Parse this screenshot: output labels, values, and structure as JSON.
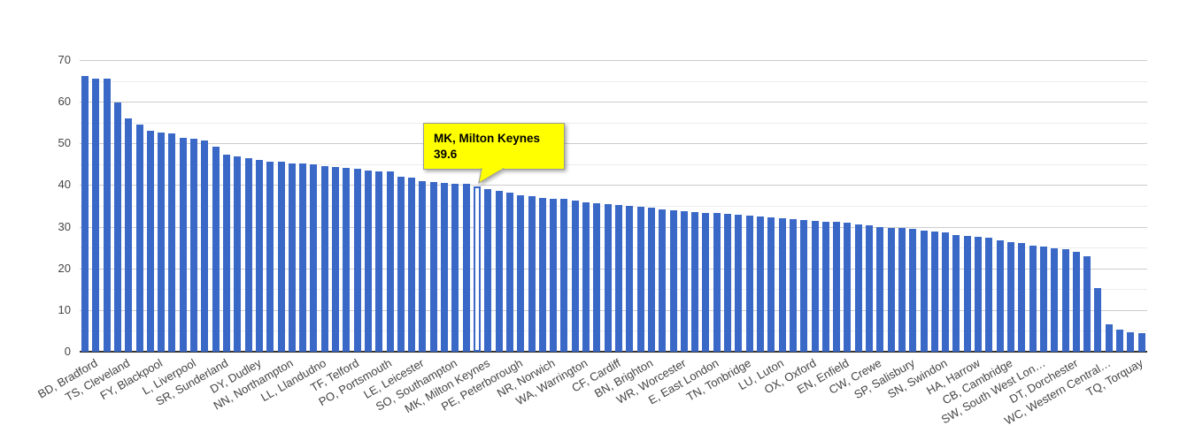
{
  "chart_data": {
    "type": "bar",
    "title": "",
    "xlabel": "",
    "ylabel": "",
    "ylim": [
      0,
      70
    ],
    "y_ticks": [
      0,
      10,
      20,
      30,
      40,
      50,
      60,
      70
    ],
    "grid": "on",
    "legend": "none",
    "tooltip": {
      "title": "MK, Milton Keynes",
      "value": "39.6"
    },
    "colors": {
      "bar": "#3a68c7",
      "highlight_fill": "#ffffff",
      "gridline_major": "#cccccc",
      "gridline_minor": "#ececec",
      "baseline": "#333333",
      "axis_text": "#444444",
      "tooltip_bg": "#ffff00",
      "tooltip_border": "#999999",
      "tooltip_text": "#000000"
    },
    "bars": [
      {
        "label": "BD, Bradford",
        "value": 66.2
      },
      {
        "label": "",
        "value": 65.6
      },
      {
        "label": "",
        "value": 65.5
      },
      {
        "label": "TS, Cleveland",
        "value": 59.8
      },
      {
        "label": "",
        "value": 56.0
      },
      {
        "label": "",
        "value": 54.6
      },
      {
        "label": "FY, Blackpool",
        "value": 53.0
      },
      {
        "label": "",
        "value": 52.5
      },
      {
        "label": "",
        "value": 52.3
      },
      {
        "label": "L, Liverpool",
        "value": 51.4
      },
      {
        "label": "",
        "value": 51.2
      },
      {
        "label": "",
        "value": 50.8
      },
      {
        "label": "SR, Sunderland",
        "value": 49.3
      },
      {
        "label": "",
        "value": 47.4
      },
      {
        "label": "",
        "value": 46.9
      },
      {
        "label": "DY, Dudley",
        "value": 46.4
      },
      {
        "label": "",
        "value": 46.0
      },
      {
        "label": "",
        "value": 45.7
      },
      {
        "label": "NN, Northampton",
        "value": 45.5
      },
      {
        "label": "",
        "value": 45.2
      },
      {
        "label": "",
        "value": 45.1
      },
      {
        "label": "LL, Llandudno",
        "value": 45.0
      },
      {
        "label": "",
        "value": 44.6
      },
      {
        "label": "",
        "value": 44.4
      },
      {
        "label": "TF, Telford",
        "value": 44.2
      },
      {
        "label": "",
        "value": 44.0
      },
      {
        "label": "",
        "value": 43.4
      },
      {
        "label": "PO, Portsmouth",
        "value": 43.3
      },
      {
        "label": "",
        "value": 43.2
      },
      {
        "label": "",
        "value": 42.1
      },
      {
        "label": "LE, Leicester",
        "value": 41.8
      },
      {
        "label": "",
        "value": 41.0
      },
      {
        "label": "",
        "value": 40.7
      },
      {
        "label": "SO, Southampton",
        "value": 40.5
      },
      {
        "label": "",
        "value": 40.3
      },
      {
        "label": "",
        "value": 40.2
      },
      {
        "label": "MK, Milton Keynes",
        "value": 39.6,
        "highlighted": true
      },
      {
        "label": "",
        "value": 39.0
      },
      {
        "label": "",
        "value": 38.7
      },
      {
        "label": "PE, Peterborough",
        "value": 38.1
      },
      {
        "label": "",
        "value": 37.6
      },
      {
        "label": "",
        "value": 37.3
      },
      {
        "label": "NR, Norwich",
        "value": 36.9
      },
      {
        "label": "",
        "value": 36.7
      },
      {
        "label": "",
        "value": 36.6
      },
      {
        "label": "WA, Warrington",
        "value": 36.2
      },
      {
        "label": "",
        "value": 35.9
      },
      {
        "label": "",
        "value": 35.7
      },
      {
        "label": "CF, Cardiff",
        "value": 35.5
      },
      {
        "label": "",
        "value": 35.2
      },
      {
        "label": "",
        "value": 35.0
      },
      {
        "label": "BN, Brighton",
        "value": 34.8
      },
      {
        "label": "",
        "value": 34.5
      },
      {
        "label": "",
        "value": 34.2
      },
      {
        "label": "WR, Worcester",
        "value": 33.9
      },
      {
        "label": "",
        "value": 33.7
      },
      {
        "label": "",
        "value": 33.5
      },
      {
        "label": "E, East London",
        "value": 33.4
      },
      {
        "label": "",
        "value": 33.2
      },
      {
        "label": "",
        "value": 33.1
      },
      {
        "label": "TN, Tonbridge",
        "value": 32.9
      },
      {
        "label": "",
        "value": 32.7
      },
      {
        "label": "",
        "value": 32.5
      },
      {
        "label": "LU, Luton",
        "value": 32.3
      },
      {
        "label": "",
        "value": 32.1
      },
      {
        "label": "",
        "value": 31.9
      },
      {
        "label": "OX, Oxford",
        "value": 31.6
      },
      {
        "label": "",
        "value": 31.4
      },
      {
        "label": "",
        "value": 31.2
      },
      {
        "label": "EN, Enfield",
        "value": 31.1
      },
      {
        "label": "",
        "value": 30.9
      },
      {
        "label": "",
        "value": 30.6
      },
      {
        "label": "CW, Crewe",
        "value": 30.3
      },
      {
        "label": "",
        "value": 30.0
      },
      {
        "label": "",
        "value": 29.8
      },
      {
        "label": "SP, Salisbury",
        "value": 29.6
      },
      {
        "label": "",
        "value": 29.4
      },
      {
        "label": "",
        "value": 29.1
      },
      {
        "label": "SN, Swindon",
        "value": 28.8
      },
      {
        "label": "",
        "value": 28.6
      },
      {
        "label": "",
        "value": 27.9
      },
      {
        "label": "HA, Harrow",
        "value": 27.8
      },
      {
        "label": "",
        "value": 27.6
      },
      {
        "label": "",
        "value": 27.4
      },
      {
        "label": "CB, Cambridge",
        "value": 26.8
      },
      {
        "label": "",
        "value": 26.2
      },
      {
        "label": "",
        "value": 26.0
      },
      {
        "label": "SW, South West Lon…",
        "value": 25.4
      },
      {
        "label": "",
        "value": 25.2
      },
      {
        "label": "",
        "value": 24.8
      },
      {
        "label": "DT, Dorchester",
        "value": 24.6
      },
      {
        "label": "",
        "value": 23.9
      },
      {
        "label": "",
        "value": 22.9
      },
      {
        "label": "WC, Western Central…",
        "value": 15.3
      },
      {
        "label": "",
        "value": 6.5
      },
      {
        "label": "",
        "value": 5.2
      },
      {
        "label": "TQ, Torquay",
        "value": 4.7
      },
      {
        "label": "",
        "value": 4.4
      }
    ]
  }
}
